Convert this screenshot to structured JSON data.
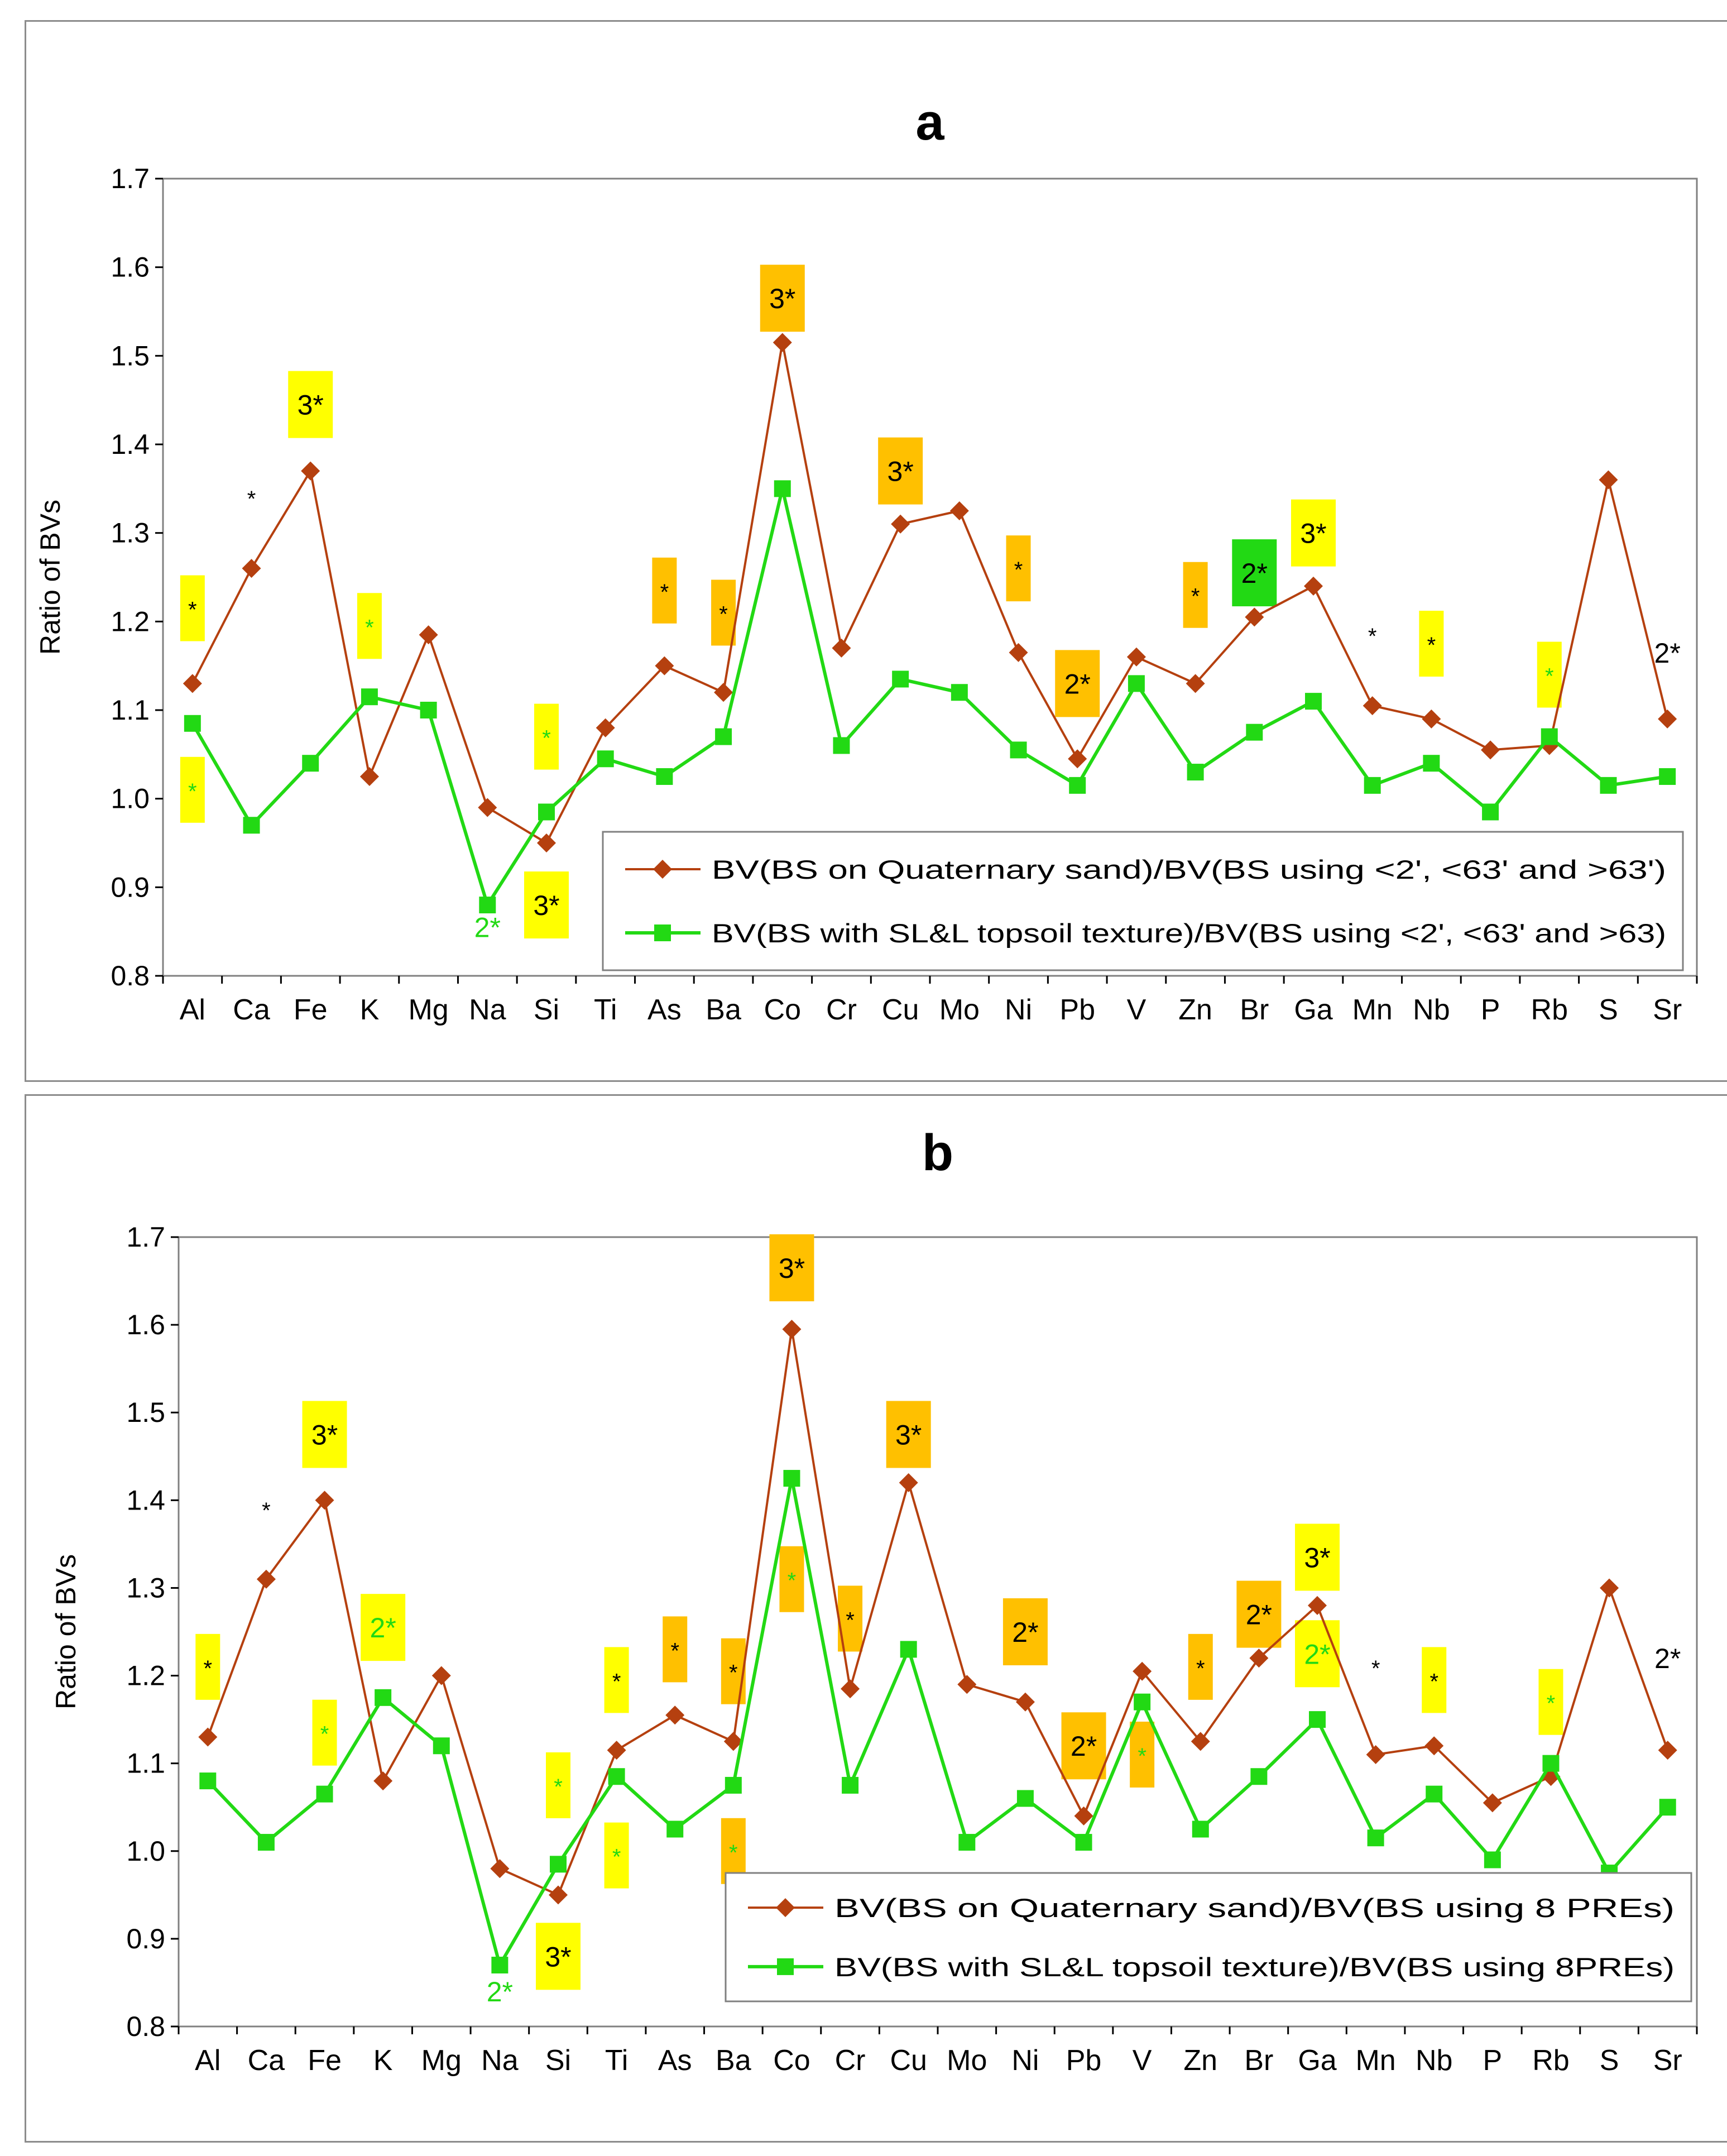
{
  "chart_data": [
    {
      "panel": "a",
      "type": "line",
      "title": "a",
      "xlabel": "",
      "ylabel": "Ratio of BVs",
      "ylim": [
        0.8,
        1.7
      ],
      "yticks": [
        "0.8",
        "0.9",
        "1.0",
        "1.1",
        "1.2",
        "1.3",
        "1.4",
        "1.5",
        "1.6",
        "1.7"
      ],
      "grid": false,
      "legend_position": "bottom-right",
      "categories": [
        "Al",
        "Ca",
        "Fe",
        "K",
        "Mg",
        "Na",
        "Si",
        "Ti",
        "As",
        "Ba",
        "Co",
        "Cr",
        "Cu",
        "Mo",
        "Ni",
        "Pb",
        "V",
        "Zn",
        "Br",
        "Ga",
        "Mn",
        "Nb",
        "P",
        "Rb",
        "S",
        "Sr"
      ],
      "series": [
        {
          "name": "BV(BS on Quaternary sand)/BV(BS using <2', <63' and >63')",
          "color": "#b5400f",
          "marker": "diamond",
          "values": [
            1.13,
            1.26,
            1.37,
            1.025,
            1.185,
            0.99,
            0.95,
            1.08,
            1.15,
            1.12,
            1.515,
            1.17,
            1.31,
            1.325,
            1.165,
            1.045,
            1.16,
            1.13,
            1.205,
            1.24,
            1.105,
            1.09,
            1.055,
            1.06,
            1.36,
            1.09
          ]
        },
        {
          "name": "BV(BS with SL&L topsoil texture)/BV(BS using <2', <63' and >63)",
          "color": "#22d914",
          "marker": "square",
          "values": [
            1.085,
            0.97,
            1.04,
            1.115,
            1.1,
            0.88,
            0.985,
            1.045,
            1.025,
            1.07,
            1.35,
            1.06,
            1.135,
            1.12,
            1.055,
            1.015,
            1.13,
            1.03,
            1.075,
            1.11,
            1.015,
            1.04,
            0.985,
            1.07,
            1.015,
            1.025
          ]
        }
      ],
      "annotations": [
        {
          "cat": "Al",
          "y": 1.215,
          "text": "*",
          "bg": "#ffff00",
          "fg": "#000000",
          "kind": "tall"
        },
        {
          "cat": "Al",
          "y": 1.01,
          "text": "*",
          "bg": "#ffff00",
          "fg": "#22d914",
          "kind": "tall"
        },
        {
          "cat": "Ca",
          "y": 1.34,
          "text": "*",
          "bg": "",
          "fg": "#000000",
          "kind": "plain"
        },
        {
          "cat": "Fe",
          "y": 1.445,
          "text": "3*",
          "bg": "#ffff00",
          "fg": "#000000",
          "kind": "box"
        },
        {
          "cat": "K",
          "y": 1.195,
          "text": "*",
          "bg": "#ffff00",
          "fg": "#22d914",
          "kind": "tall"
        },
        {
          "cat": "Na",
          "y": 0.855,
          "text": "2*",
          "bg": "",
          "fg": "#22d914",
          "kind": "plain"
        },
        {
          "cat": "Si",
          "y": 1.07,
          "text": "*",
          "bg": "#ffff00",
          "fg": "#22d914",
          "kind": "tall"
        },
        {
          "cat": "Si",
          "y": 0.88,
          "text": "3*",
          "bg": "#ffff00",
          "fg": "#000000",
          "kind": "box"
        },
        {
          "cat": "As",
          "y": 1.235,
          "text": "*",
          "bg": "#ffc000",
          "fg": "#000000",
          "kind": "tall"
        },
        {
          "cat": "Ba",
          "y": 1.21,
          "text": "*",
          "bg": "#ffc000",
          "fg": "#000000",
          "kind": "tall"
        },
        {
          "cat": "Co",
          "y": 1.565,
          "text": "3*",
          "bg": "#ffc000",
          "fg": "#000000",
          "kind": "box"
        },
        {
          "cat": "Cu",
          "y": 1.37,
          "text": "3*",
          "bg": "#ffc000",
          "fg": "#000000",
          "kind": "box"
        },
        {
          "cat": "Ni",
          "y": 1.26,
          "text": "*",
          "bg": "#ffc000",
          "fg": "#000000",
          "kind": "tall"
        },
        {
          "cat": "Pb",
          "y": 1.13,
          "text": "2*",
          "bg": "#ffc000",
          "fg": "#000000",
          "kind": "box"
        },
        {
          "cat": "Zn",
          "y": 1.23,
          "text": "*",
          "bg": "#ffc000",
          "fg": "#000000",
          "kind": "tall"
        },
        {
          "cat": "Br",
          "y": 1.255,
          "text": "2*",
          "bg": "#22d914",
          "fg": "#000000",
          "kind": "box"
        },
        {
          "cat": "Ga",
          "y": 1.3,
          "text": "3*",
          "bg": "#ffff00",
          "fg": "#000000",
          "kind": "box"
        },
        {
          "cat": "Mn",
          "y": 1.185,
          "text": "*",
          "bg": "",
          "fg": "#000000",
          "kind": "plain"
        },
        {
          "cat": "Nb",
          "y": 1.175,
          "text": "*",
          "bg": "#ffff00",
          "fg": "#000000",
          "kind": "tall"
        },
        {
          "cat": "Rb",
          "y": 1.14,
          "text": "*",
          "bg": "#ffff00",
          "fg": "#22d914",
          "kind": "tall"
        },
        {
          "cat": "Sr",
          "y": 1.165,
          "text": "2*",
          "bg": "",
          "fg": "#000000",
          "kind": "plain"
        }
      ]
    },
    {
      "panel": "b",
      "type": "line",
      "title": "b",
      "xlabel": "",
      "ylabel": "Ratio of BVs",
      "ylim": [
        0.8,
        1.7
      ],
      "yticks": [
        "0.8",
        "0.9",
        "1.0",
        "1.1",
        "1.2",
        "1.3",
        "1.4",
        "1.5",
        "1.6",
        "1.7"
      ],
      "grid": false,
      "legend_position": "bottom-right",
      "categories": [
        "Al",
        "Ca",
        "Fe",
        "K",
        "Mg",
        "Na",
        "Si",
        "Ti",
        "As",
        "Ba",
        "Co",
        "Cr",
        "Cu",
        "Mo",
        "Ni",
        "Pb",
        "V",
        "Zn",
        "Br",
        "Ga",
        "Mn",
        "Nb",
        "P",
        "Rb",
        "S",
        "Sr"
      ],
      "series": [
        {
          "name": "BV(BS on Quaternary sand)/BV(BS using 8 PREs)",
          "color": "#b5400f",
          "marker": "diamond",
          "values": [
            1.13,
            1.31,
            1.4,
            1.08,
            1.2,
            0.98,
            0.95,
            1.115,
            1.155,
            1.125,
            1.595,
            1.185,
            1.42,
            1.19,
            1.17,
            1.04,
            1.205,
            1.125,
            1.22,
            1.28,
            1.11,
            1.12,
            1.055,
            1.085,
            1.3,
            1.115
          ]
        },
        {
          "name": "BV(BS with SL&L topsoil texture)/BV(BS using 8PREs)",
          "color": "#22d914",
          "marker": "square",
          "values": [
            1.08,
            1.01,
            1.065,
            1.175,
            1.12,
            0.87,
            0.985,
            1.085,
            1.025,
            1.075,
            1.425,
            1.075,
            1.23,
            1.01,
            1.06,
            1.01,
            1.17,
            1.025,
            1.085,
            1.15,
            1.015,
            1.065,
            0.99,
            1.1,
            0.975,
            1.05
          ]
        }
      ],
      "annotations": [
        {
          "cat": "Al",
          "y": 1.21,
          "text": "*",
          "bg": "#ffff00",
          "fg": "#000000",
          "kind": "tall"
        },
        {
          "cat": "Ca",
          "y": 1.39,
          "text": "*",
          "bg": "",
          "fg": "#000000",
          "kind": "plain"
        },
        {
          "cat": "Fe",
          "y": 1.475,
          "text": "3*",
          "bg": "#ffff00",
          "fg": "#000000",
          "kind": "box"
        },
        {
          "cat": "Fe",
          "y": 1.135,
          "text": "*",
          "bg": "#ffff00",
          "fg": "#22d914",
          "kind": "tall"
        },
        {
          "cat": "K",
          "y": 1.255,
          "text": "2*",
          "bg": "#ffff00",
          "fg": "#22d914",
          "kind": "box"
        },
        {
          "cat": "Na",
          "y": 0.84,
          "text": "2*",
          "bg": "",
          "fg": "#22d914",
          "kind": "plain"
        },
        {
          "cat": "Si",
          "y": 1.075,
          "text": "*",
          "bg": "#ffff00",
          "fg": "#22d914",
          "kind": "tall"
        },
        {
          "cat": "Si",
          "y": 0.88,
          "text": "3*",
          "bg": "#ffff00",
          "fg": "#000000",
          "kind": "box"
        },
        {
          "cat": "Ti",
          "y": 1.195,
          "text": "*",
          "bg": "#ffff00",
          "fg": "#000000",
          "kind": "tall"
        },
        {
          "cat": "Ti",
          "y": 0.995,
          "text": "*",
          "bg": "#ffff00",
          "fg": "#22d914",
          "kind": "tall"
        },
        {
          "cat": "As",
          "y": 1.23,
          "text": "*",
          "bg": "#ffc000",
          "fg": "#000000",
          "kind": "tall"
        },
        {
          "cat": "Ba",
          "y": 1.205,
          "text": "*",
          "bg": "#ffc000",
          "fg": "#000000",
          "kind": "tall"
        },
        {
          "cat": "Ba",
          "y": 1.0,
          "text": "*",
          "bg": "#ffc000",
          "fg": "#22d914",
          "kind": "tall"
        },
        {
          "cat": "Co",
          "y": 1.665,
          "text": "3*",
          "bg": "#ffc000",
          "fg": "#000000",
          "kind": "box"
        },
        {
          "cat": "Co",
          "y": 1.31,
          "text": "*",
          "bg": "#ffc000",
          "fg": "#22d914",
          "kind": "tall"
        },
        {
          "cat": "Cr",
          "y": 1.265,
          "text": "*",
          "bg": "#ffc000",
          "fg": "#000000",
          "kind": "tall"
        },
        {
          "cat": "Cu",
          "y": 1.475,
          "text": "3*",
          "bg": "#ffc000",
          "fg": "#000000",
          "kind": "box"
        },
        {
          "cat": "Ni",
          "y": 1.25,
          "text": "2*",
          "bg": "#ffc000",
          "fg": "#000000",
          "kind": "box"
        },
        {
          "cat": "Pb",
          "y": 1.12,
          "text": "2*",
          "bg": "#ffc000",
          "fg": "#000000",
          "kind": "box"
        },
        {
          "cat": "V",
          "y": 1.11,
          "text": "*",
          "bg": "#ffc000",
          "fg": "#22d914",
          "kind": "tall"
        },
        {
          "cat": "Zn",
          "y": 1.21,
          "text": "*",
          "bg": "#ffc000",
          "fg": "#000000",
          "kind": "tall"
        },
        {
          "cat": "Br",
          "y": 1.27,
          "text": "2*",
          "bg": "#ffc000",
          "fg": "#000000",
          "kind": "box"
        },
        {
          "cat": "Ga",
          "y": 1.335,
          "text": "3*",
          "bg": "#ffff00",
          "fg": "#000000",
          "kind": "box"
        },
        {
          "cat": "Ga",
          "y": 1.225,
          "text": "2*",
          "bg": "#ffff00",
          "fg": "#22d914",
          "kind": "box"
        },
        {
          "cat": "Mn",
          "y": 1.21,
          "text": "*",
          "bg": "",
          "fg": "#000000",
          "kind": "plain"
        },
        {
          "cat": "Nb",
          "y": 1.195,
          "text": "*",
          "bg": "#ffff00",
          "fg": "#000000",
          "kind": "tall"
        },
        {
          "cat": "Rb",
          "y": 1.17,
          "text": "*",
          "bg": "#ffff00",
          "fg": "#22d914",
          "kind": "tall"
        },
        {
          "cat": "Sr",
          "y": 1.22,
          "text": "2*",
          "bg": "",
          "fg": "#000000",
          "kind": "plain"
        }
      ]
    }
  ]
}
